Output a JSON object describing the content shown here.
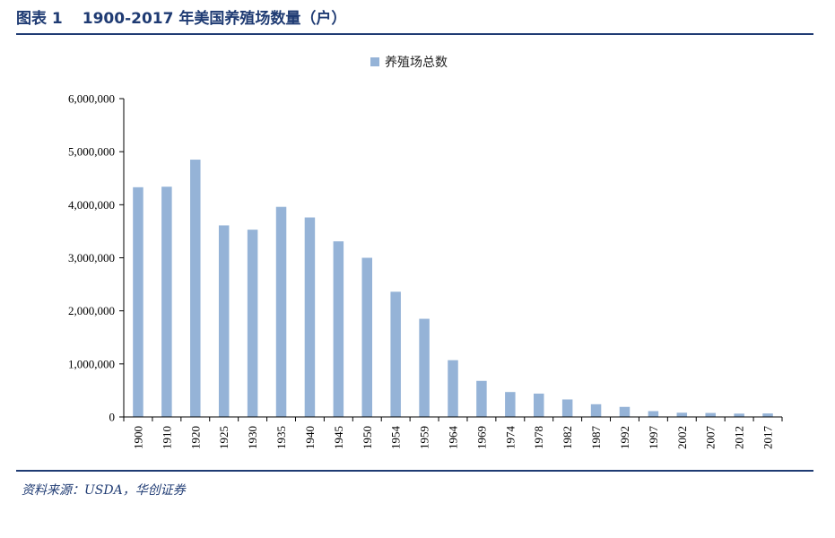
{
  "figure": {
    "label": "图表 1",
    "title": "1900-2017 年美国养殖场数量（户）"
  },
  "source": "资料来源：USDA，华创证券",
  "chart_data": {
    "type": "bar",
    "title": "1900-2017 年美国养殖场数量（户）",
    "categories": [
      "1900",
      "1910",
      "1920",
      "1925",
      "1930",
      "1935",
      "1940",
      "1945",
      "1950",
      "1954",
      "1959",
      "1964",
      "1969",
      "1974",
      "1978",
      "1982",
      "1987",
      "1992",
      "1997",
      "2002",
      "2007",
      "2012",
      "2017"
    ],
    "series": [
      {
        "name": "养殖场总数",
        "color": "#95b3d7",
        "values": [
          4330000,
          4340000,
          4850000,
          3610000,
          3530000,
          3960000,
          3760000,
          3310000,
          3000000,
          2360000,
          1850000,
          1070000,
          680000,
          470000,
          440000,
          330000,
          240000,
          190000,
          110000,
          80000,
          75000,
          63000,
          66000
        ]
      }
    ],
    "ylim": [
      0,
      6000000
    ],
    "yticks": [
      0,
      1000000,
      2000000,
      3000000,
      4000000,
      5000000,
      6000000
    ],
    "ytick_labels": [
      "0",
      "1,000,000",
      "2,000,000",
      "3,000,000",
      "4,000,000",
      "5,000,000",
      "6,000,000"
    ],
    "xlabel": "",
    "ylabel": "",
    "grid": false,
    "legend": "top-center"
  }
}
